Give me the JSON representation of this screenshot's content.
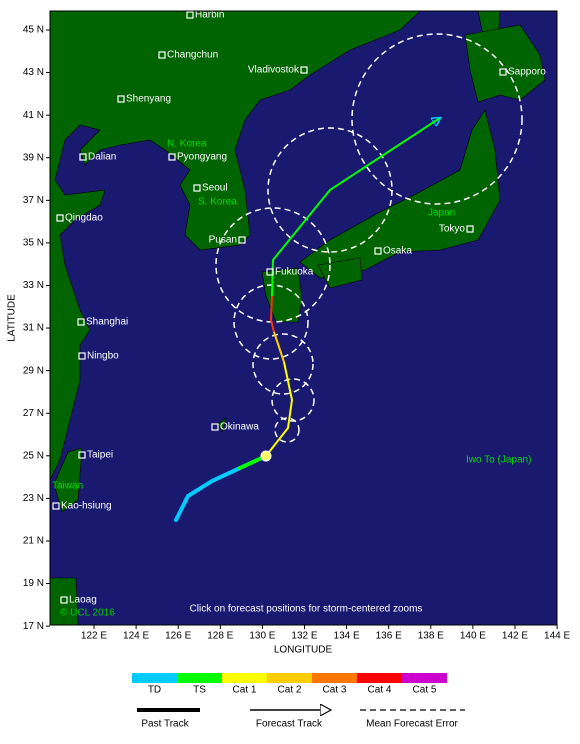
{
  "map": {
    "x_axis_label": "LONGITUDE",
    "y_axis_label": "LATITUDE",
    "lat_ticks": [
      "45 N",
      "43 N",
      "41 N",
      "39 N",
      "37 N",
      "35 N",
      "33 N",
      "31 N",
      "29 N",
      "27 N",
      "25 N",
      "23 N",
      "21 N",
      "19 N",
      "17 N"
    ],
    "lon_ticks": [
      "122 E",
      "124 E",
      "126 E",
      "128 E",
      "130 E",
      "132 E",
      "134 E",
      "136 E",
      "138 E",
      "140 E",
      "142 E",
      "144 E"
    ],
    "cities": [
      "Harbin",
      "Changchun",
      "Vladivostok",
      "Sapporo",
      "Shenyang",
      "Dalian",
      "Pyongyang",
      "Seoul",
      "Qingdao",
      "Pusan",
      "Osaka",
      "Tokyo",
      "Fukuoka",
      "Shanghai",
      "Ningbo",
      "Okinawa",
      "Taipei",
      "Kao-hsiung",
      "Laoag"
    ],
    "regions": [
      "N. Korea",
      "S. Korea",
      "Japan",
      "Iwo To (Japan)",
      "Taiwan"
    ],
    "copyright": "© UCL 2016",
    "note": "Click on forecast positions for storm-centered zooms"
  },
  "legend": {
    "categories": [
      "TD",
      "TS",
      "Cat 1",
      "Cat 2",
      "Cat 3",
      "Cat 4",
      "Cat 5"
    ],
    "colors": [
      "#00ccff",
      "#00ff00",
      "#ffff00",
      "#ffcc00",
      "#ff7700",
      "#ff0000",
      "#cc00cc"
    ],
    "track_styles": [
      "Past Track",
      "Forecast Track",
      "Mean Forecast Error"
    ]
  }
}
